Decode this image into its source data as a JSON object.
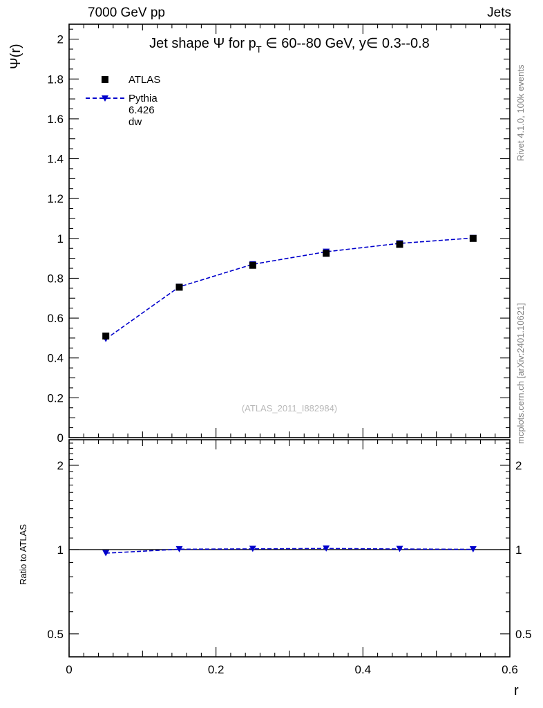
{
  "header": {
    "left": "7000 GeV pp",
    "right": "Jets"
  },
  "title": {
    "pre": "Jet shape Ψ for p",
    "sub": "T",
    "post": " ∈ 60--80 GeV,  y∈ 0.3--0.8"
  },
  "legend": [
    {
      "label": "ATLAS",
      "marker": "square",
      "color": "#000000"
    },
    {
      "label": "Pythia 6.426 dw",
      "marker": "triangle-down",
      "color": "#0000cc",
      "line": "dashed"
    }
  ],
  "watermark": "(ATLAS_2011_I882984)",
  "side_notes": {
    "top": "Rivet 4.1.0, 100k events",
    "bottom": "mcplots.cern.ch [arXiv:2401.10621]"
  },
  "axes": {
    "main": {
      "ylabel": "Ψ(r)",
      "ylim": [
        0,
        2.075
      ],
      "yticks": [
        0,
        0.2,
        0.4,
        0.6,
        0.8,
        1,
        1.2,
        1.4,
        1.6,
        1.8,
        2
      ]
    },
    "ratio": {
      "ylabel": "Ratio to ATLAS",
      "scale": "log",
      "ylim": [
        0.414,
        2.468
      ],
      "yticks": [
        0.5,
        1,
        2
      ],
      "yminor": [
        0.6,
        0.7,
        0.8,
        0.9,
        1.1,
        1.2,
        1.3,
        1.4,
        1.5,
        1.6,
        1.7,
        1.8,
        1.9,
        2.1,
        2.2,
        2.3,
        2.4
      ]
    },
    "x": {
      "label": "r",
      "lim": [
        0,
        0.6
      ],
      "ticks": [
        0,
        0.2,
        0.4,
        0.6
      ]
    }
  },
  "chart_data": {
    "type": "line",
    "title": "Jet shape Ψ for pT ∈ 60--80 GeV, y ∈ 0.3--0.8",
    "xlabel": "r",
    "ylabel": "Ψ(r)",
    "x": [
      0.05,
      0.15,
      0.25,
      0.35,
      0.45,
      0.55
    ],
    "series": [
      {
        "name": "ATLAS",
        "marker": "square",
        "color": "#000000",
        "values": [
          0.51,
          0.755,
          0.865,
          0.925,
          0.97,
          1.0
        ]
      },
      {
        "name": "Pythia 6.426 dw",
        "marker": "triangle-down",
        "color": "#0000cc",
        "style": "dashed",
        "values": [
          0.495,
          0.757,
          0.87,
          0.933,
          0.975,
          1.002
        ]
      }
    ],
    "ratio_series": [
      {
        "name": "Pythia 6.426 dw / ATLAS",
        "values": [
          0.971,
          1.003,
          1.006,
          1.009,
          1.005,
          1.002
        ]
      }
    ]
  }
}
